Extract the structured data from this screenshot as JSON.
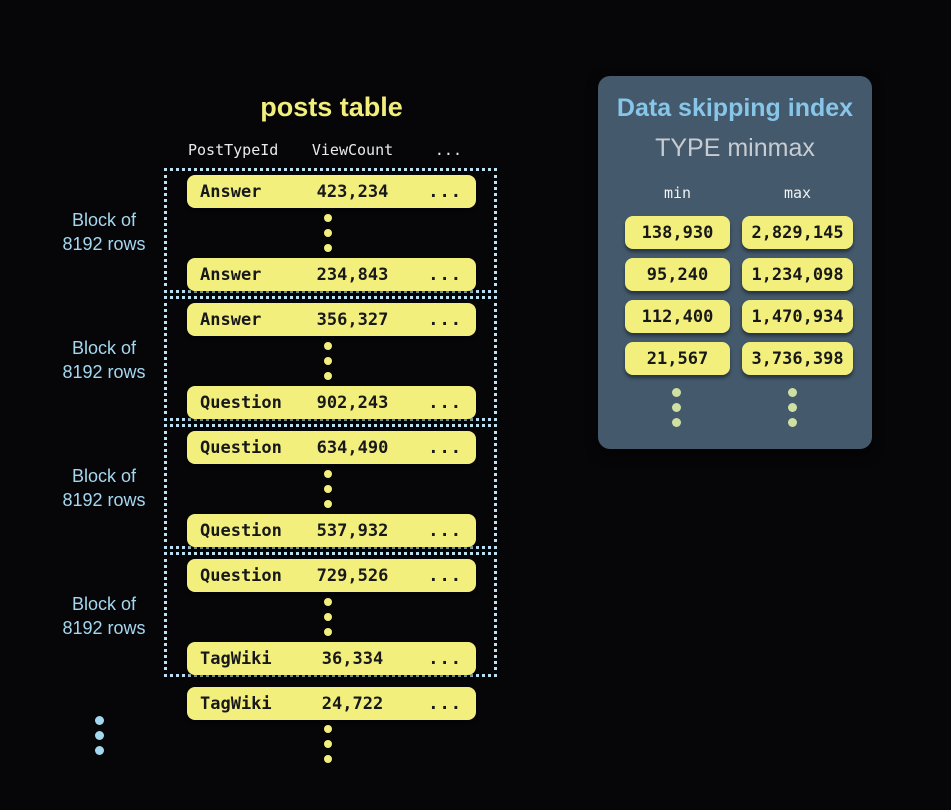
{
  "colors": {
    "background": "#060608",
    "highlight_yellow": "#f3ef7d",
    "accent_blue": "#a5d7ee",
    "dotted_border_blue": "#b9e1f3",
    "panel_background": "#44596b",
    "panel_title_blue": "#87c6e9",
    "panel_subtitle_gray": "#c7ccd3",
    "pill_text": "#17181a",
    "panel_dots_green": "#cfe0a2"
  },
  "posts_table": {
    "title": "posts table",
    "columns": {
      "type": "PostTypeId",
      "views": "ViewCount",
      "more": "..."
    },
    "block_label": {
      "line1": "Block of",
      "line2": "8192 rows"
    },
    "blocks": [
      {
        "rows": [
          {
            "type": "Answer",
            "views": "423,234",
            "more": "..."
          },
          {
            "type": "Answer",
            "views": "234,843",
            "more": "..."
          }
        ]
      },
      {
        "rows": [
          {
            "type": "Answer",
            "views": "356,327",
            "more": "..."
          },
          {
            "type": "Question",
            "views": "902,243",
            "more": "..."
          }
        ]
      },
      {
        "rows": [
          {
            "type": "Question",
            "views": "634,490",
            "more": "..."
          },
          {
            "type": "Question",
            "views": "537,932",
            "more": "..."
          }
        ]
      },
      {
        "rows": [
          {
            "type": "Question",
            "views": "729,526",
            "more": "..."
          },
          {
            "type": "TagWiki",
            "views": "36,334",
            "more": "..."
          }
        ]
      }
    ],
    "trailing_row": {
      "type": "TagWiki",
      "views": "24,722",
      "more": "..."
    }
  },
  "index_panel": {
    "title": "Data skipping index",
    "subtitle": "TYPE minmax",
    "columns": {
      "min": "min",
      "max": "max"
    },
    "rows": [
      {
        "min": "138,930",
        "max": "2,829,145"
      },
      {
        "min": "95,240",
        "max": "1,234,098"
      },
      {
        "min": "112,400",
        "max": "1,470,934"
      },
      {
        "min": "21,567",
        "max": "3,736,398"
      }
    ]
  }
}
